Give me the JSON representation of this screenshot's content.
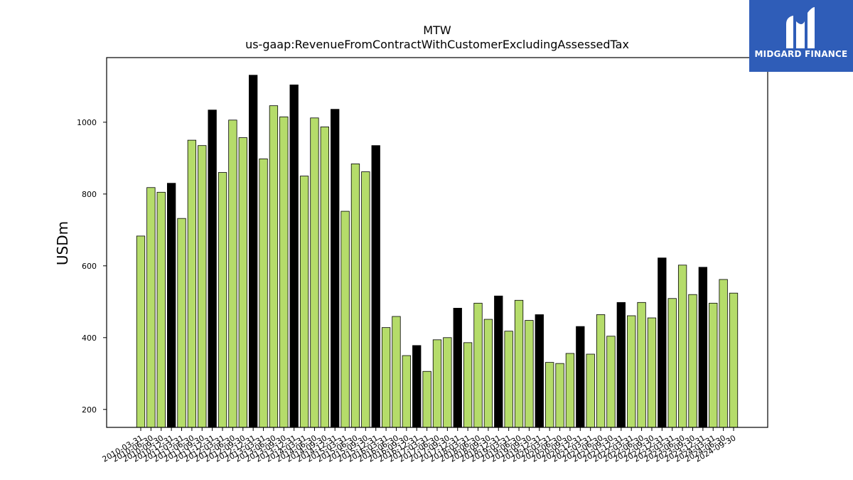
{
  "brand": {
    "name": "MIDGARD FINANCE",
    "color": "#2f5db8"
  },
  "chart_data": {
    "type": "bar",
    "title": "MTW",
    "subtitle": "us-gaap:RevenueFromContractWithCustomerExcludingAssessedTax",
    "ylabel": "USDm",
    "xlabel": "",
    "ylim": [
      150,
      1180
    ],
    "yticks": [
      200,
      400,
      600,
      800,
      1000
    ],
    "grid": false,
    "colors": {
      "quarter": "#b5dc6a",
      "year_end": "#000000",
      "edge": "#000000"
    },
    "categories": [
      "2010-03-31",
      "2010-06-30",
      "2010-09-30",
      "2010-12-31",
      "2011-03-31",
      "2011-06-30",
      "2011-09-30",
      "2011-12-31",
      "2012-03-31",
      "2012-06-30",
      "2012-09-30",
      "2012-12-31",
      "2013-03-31",
      "2013-06-30",
      "2013-09-30",
      "2013-12-31",
      "2014-03-31",
      "2014-06-30",
      "2014-09-30",
      "2014-12-31",
      "2015-03-31",
      "2015-06-30",
      "2015-09-30",
      "2015-12-31",
      "2016-03-31",
      "2016-06-30",
      "2016-09-30",
      "2016-12-31",
      "2017-03-31",
      "2017-06-30",
      "2017-09-30",
      "2017-12-31",
      "2018-03-31",
      "2018-06-30",
      "2018-09-30",
      "2018-12-31",
      "2019-03-31",
      "2019-06-30",
      "2019-09-30",
      "2019-12-31",
      "2020-03-31",
      "2020-06-30",
      "2020-09-30",
      "2020-12-31",
      "2021-03-31",
      "2021-06-30",
      "2021-09-30",
      "2021-12-31",
      "2022-03-31",
      "2022-06-30",
      "2022-09-30",
      "2022-12-31",
      "2023-03-31",
      "2023-06-30",
      "2023-09-30",
      "2023-12-31",
      "2024-03-31",
      "2024-06-30",
      "2024-09-30"
    ],
    "values": [
      683,
      818,
      805,
      830,
      732,
      950,
      935,
      1034,
      860,
      1006,
      957,
      1131,
      898,
      1046,
      1015,
      1104,
      850,
      1012,
      987,
      1036,
      752,
      884,
      862,
      935,
      428,
      459,
      350,
      378,
      306,
      394,
      400,
      482,
      386,
      496,
      451,
      516,
      418,
      504,
      448,
      464,
      331,
      328,
      356,
      431,
      354,
      464,
      404,
      498,
      461,
      498,
      455,
      622,
      509,
      602,
      520,
      596,
      496,
      562,
      524
    ],
    "year_end_indices": [
      3,
      7,
      11,
      15,
      19,
      23,
      27,
      31,
      35,
      39,
      43,
      47,
      51,
      55
    ]
  }
}
